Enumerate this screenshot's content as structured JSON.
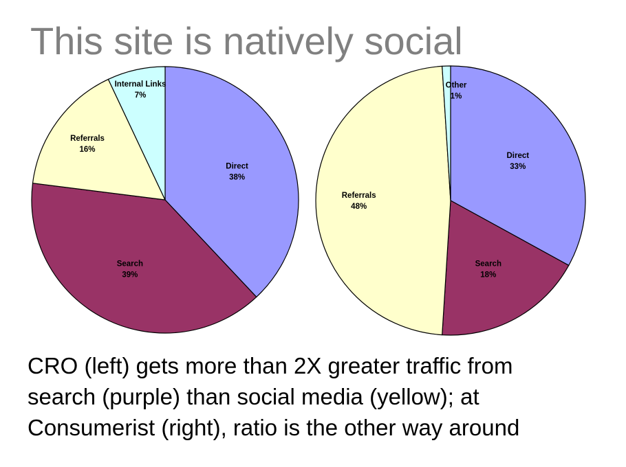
{
  "slide": {
    "title": "This site is natively social",
    "caption_lines": [
      "CRO (left) gets more than 2X greater traffic from",
      "search (purple) than social media (yellow); at",
      "Consumerist (right), ratio is the other way around"
    ]
  },
  "colors": {
    "Direct": "#9999ff",
    "Search": "#993366",
    "Referrals": "#ffffcc",
    "Internal Links": "#ccffff",
    "Other": "#ccffff",
    "outline": "#000000"
  },
  "chart_data": [
    {
      "type": "pie",
      "title": "",
      "start": "12 o'clock",
      "direction": "clockwise",
      "slices": [
        {
          "label": "Direct",
          "value": 38,
          "display": "38%"
        },
        {
          "label": "Search",
          "value": 39,
          "display": "39%"
        },
        {
          "label": "Referrals",
          "value": 16,
          "display": "16%"
        },
        {
          "label": "Internal Links",
          "value": 7,
          "display": "7%"
        }
      ]
    },
    {
      "type": "pie",
      "title": "",
      "start": "12 o'clock",
      "direction": "clockwise",
      "slices": [
        {
          "label": "Direct",
          "value": 33,
          "display": "33%"
        },
        {
          "label": "Search",
          "value": 18,
          "display": "18%"
        },
        {
          "label": "Referrals",
          "value": 48,
          "display": "48%"
        },
        {
          "label": "Other",
          "value": 1,
          "display": "1%"
        }
      ]
    }
  ]
}
